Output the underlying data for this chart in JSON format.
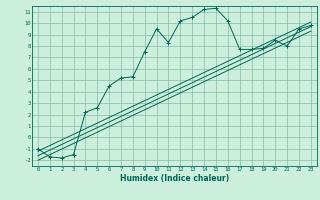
{
  "bg_color": "#cceedd",
  "grid_color": "#88bbaa",
  "line_color": "#006655",
  "xlabel": "Humidex (Indice chaleur)",
  "xlim": [
    -0.5,
    23.5
  ],
  "ylim": [
    -2.5,
    11.5
  ],
  "xticks": [
    0,
    1,
    2,
    3,
    4,
    5,
    6,
    7,
    8,
    9,
    10,
    11,
    12,
    13,
    14,
    15,
    16,
    17,
    18,
    19,
    20,
    21,
    22,
    23
  ],
  "yticks": [
    -2,
    -1,
    0,
    1,
    2,
    3,
    4,
    5,
    6,
    7,
    8,
    9,
    10,
    11
  ],
  "main_line_x": [
    0,
    1,
    2,
    3,
    4,
    5,
    6,
    7,
    8,
    9,
    10,
    11,
    12,
    13,
    14,
    15,
    16,
    17,
    18,
    19,
    20,
    21,
    22,
    23
  ],
  "main_line_y": [
    -1.0,
    -1.7,
    -1.8,
    -1.5,
    2.2,
    2.6,
    4.5,
    5.2,
    5.3,
    7.5,
    9.5,
    8.3,
    10.2,
    10.5,
    11.2,
    11.3,
    10.2,
    7.7,
    7.7,
    7.8,
    8.5,
    8.0,
    9.5,
    9.8
  ],
  "line2_x": [
    0,
    23
  ],
  "line2_y": [
    -2.0,
    9.3
  ],
  "line3_x": [
    0,
    23
  ],
  "line3_y": [
    -1.6,
    9.7
  ],
  "line4_x": [
    0,
    23
  ],
  "line4_y": [
    -1.2,
    10.1
  ],
  "xlabel_fontsize": 5.5,
  "tick_fontsize": 4.0,
  "linewidth": 0.7,
  "marker_size": 2.5
}
